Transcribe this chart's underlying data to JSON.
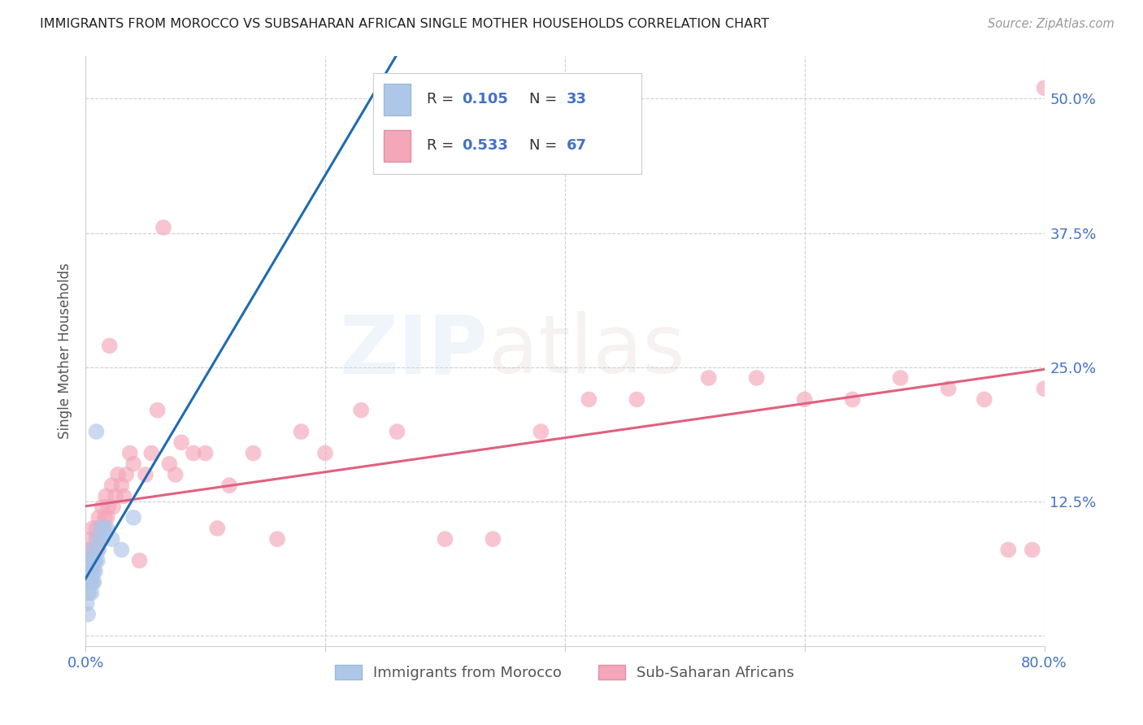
{
  "title": "IMMIGRANTS FROM MOROCCO VS SUBSAHARAN AFRICAN SINGLE MOTHER HOUSEHOLDS CORRELATION CHART",
  "source": "Source: ZipAtlas.com",
  "ylabel": "Single Mother Households",
  "xlim": [
    0.0,
    0.8
  ],
  "ylim": [
    -0.01,
    0.54
  ],
  "yticks": [
    0.0,
    0.125,
    0.25,
    0.375,
    0.5
  ],
  "ytick_labels": [
    "",
    "12.5%",
    "25.0%",
    "37.5%",
    "50.0%"
  ],
  "xticks": [
    0.0,
    0.2,
    0.4,
    0.6,
    0.8
  ],
  "xtick_labels": [
    "0.0%",
    "",
    "",
    "",
    "80.0%"
  ],
  "morocco_color": "#aec6e8",
  "morocco_edge": "#aec6e8",
  "morocco_line_color": "#1f6bb0",
  "subsaharan_color": "#f4a7b9",
  "subsaharan_edge": "#f4a7b9",
  "subsaharan_line_color": "#e06080",
  "legend_label1": "Immigrants from Morocco",
  "legend_label2": "Sub-Saharan Africans",
  "tick_color": "#4472c4",
  "grid_color": "#d0d0d0",
  "background_color": "#ffffff",
  "title_color": "#222222",
  "axis_label_color": "#555555",
  "morocco_x": [
    0.001,
    0.001,
    0.002,
    0.002,
    0.002,
    0.003,
    0.003,
    0.003,
    0.003,
    0.004,
    0.004,
    0.004,
    0.005,
    0.005,
    0.005,
    0.005,
    0.006,
    0.006,
    0.007,
    0.007,
    0.008,
    0.008,
    0.009,
    0.01,
    0.01,
    0.011,
    0.012,
    0.014,
    0.016,
    0.018,
    0.022,
    0.03,
    0.04
  ],
  "morocco_y": [
    0.05,
    0.03,
    0.04,
    0.06,
    0.02,
    0.05,
    0.07,
    0.04,
    0.06,
    0.05,
    0.07,
    0.06,
    0.04,
    0.06,
    0.08,
    0.05,
    0.05,
    0.07,
    0.06,
    0.05,
    0.07,
    0.06,
    0.19,
    0.07,
    0.09,
    0.08,
    0.1,
    0.09,
    0.1,
    0.1,
    0.09,
    0.08,
    0.11
  ],
  "subsaharan_x": [
    0.001,
    0.002,
    0.003,
    0.003,
    0.004,
    0.005,
    0.005,
    0.006,
    0.006,
    0.007,
    0.008,
    0.009,
    0.009,
    0.01,
    0.011,
    0.012,
    0.013,
    0.014,
    0.015,
    0.016,
    0.017,
    0.018,
    0.019,
    0.02,
    0.022,
    0.023,
    0.025,
    0.027,
    0.03,
    0.032,
    0.034,
    0.037,
    0.04,
    0.045,
    0.05,
    0.055,
    0.06,
    0.065,
    0.07,
    0.075,
    0.08,
    0.09,
    0.1,
    0.11,
    0.12,
    0.14,
    0.16,
    0.18,
    0.2,
    0.23,
    0.26,
    0.3,
    0.34,
    0.38,
    0.42,
    0.46,
    0.52,
    0.56,
    0.6,
    0.64,
    0.68,
    0.72,
    0.75,
    0.77,
    0.79,
    0.8,
    0.8
  ],
  "subsaharan_y": [
    0.06,
    0.07,
    0.05,
    0.08,
    0.07,
    0.06,
    0.09,
    0.07,
    0.1,
    0.08,
    0.07,
    0.09,
    0.1,
    0.08,
    0.11,
    0.09,
    0.1,
    0.12,
    0.1,
    0.11,
    0.13,
    0.11,
    0.12,
    0.27,
    0.14,
    0.12,
    0.13,
    0.15,
    0.14,
    0.13,
    0.15,
    0.17,
    0.16,
    0.07,
    0.15,
    0.17,
    0.21,
    0.38,
    0.16,
    0.15,
    0.18,
    0.17,
    0.17,
    0.1,
    0.14,
    0.17,
    0.09,
    0.19,
    0.17,
    0.21,
    0.19,
    0.09,
    0.09,
    0.19,
    0.22,
    0.22,
    0.24,
    0.24,
    0.22,
    0.22,
    0.24,
    0.23,
    0.22,
    0.08,
    0.08,
    0.23,
    0.51
  ]
}
